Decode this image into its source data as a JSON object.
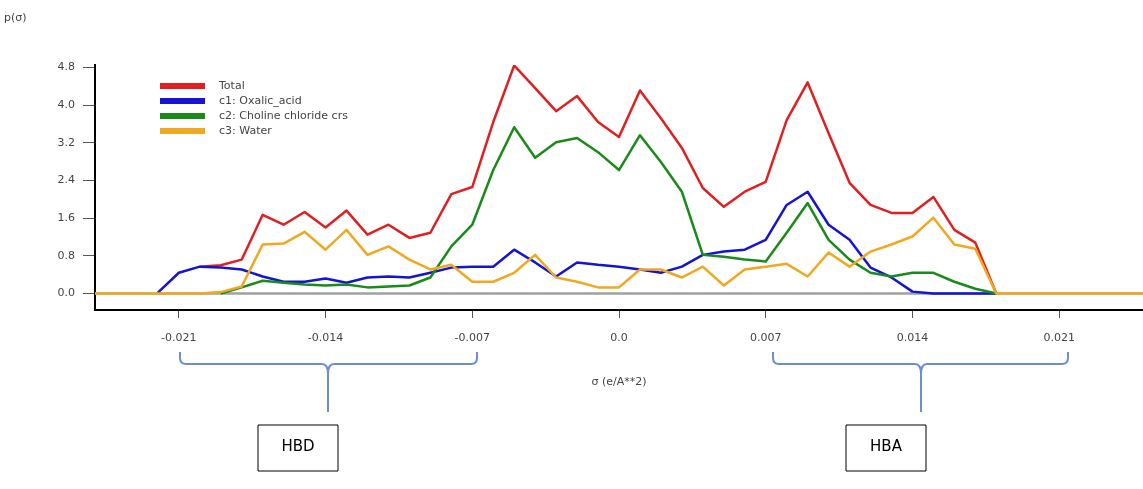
{
  "chart_data": {
    "type": "line",
    "xlabel": "σ (e/A**2)",
    "ylabel": "p(σ)",
    "x": [
      -0.025,
      -0.024,
      -0.023,
      -0.022,
      -0.021,
      -0.02,
      -0.019,
      -0.018,
      -0.017,
      -0.016,
      -0.015,
      -0.014,
      -0.013,
      -0.012,
      -0.011,
      -0.01,
      -0.009,
      -0.008,
      -0.007,
      -0.006,
      -0.005,
      -0.004,
      -0.003,
      -0.002,
      -0.001,
      0,
      0.001,
      0.002,
      0.003,
      0.004,
      0.005,
      0.006,
      0.007,
      0.008,
      0.009,
      0.01,
      0.011,
      0.012,
      0.013,
      0.014,
      0.015,
      0.016,
      0.017,
      0.018,
      0.019,
      0.02,
      0.021,
      0.022,
      0.023,
      0.024,
      0.025
    ],
    "series": [
      {
        "name": "Total",
        "color": "#e02020",
        "values": [
          null,
          null,
          null,
          null,
          null,
          0.57,
          0.6,
          0.72,
          1.67,
          1.46,
          1.73,
          1.4,
          1.76,
          1.25,
          1.46,
          1.18,
          1.29,
          2.11,
          2.26,
          3.64,
          4.84,
          4.36,
          3.87,
          4.19,
          3.64,
          3.32,
          4.31,
          3.72,
          3.09,
          2.24,
          1.84,
          2.16,
          2.37,
          3.68,
          4.48,
          3.4,
          2.35,
          1.88,
          1.71,
          1.71,
          2.05,
          1.35,
          1.08,
          0,
          null,
          null,
          null,
          null,
          null,
          null,
          null
        ]
      },
      {
        "name": "c1: Oxalic_acid",
        "color": "#1414d2",
        "values": [
          null,
          null,
          null,
          0.02,
          0.44,
          0.57,
          0.55,
          0.51,
          0.36,
          0.25,
          0.25,
          0.32,
          0.23,
          0.34,
          0.36,
          0.34,
          0.44,
          0.55,
          0.57,
          0.57,
          0.93,
          0.66,
          0.36,
          0.66,
          0.61,
          0.57,
          0.51,
          0.44,
          0.57,
          0.82,
          0.89,
          0.93,
          1.14,
          1.88,
          2.16,
          1.46,
          1.14,
          0.55,
          0.34,
          0.04,
          0,
          0,
          0,
          0,
          null,
          null,
          null,
          null,
          null,
          null,
          null
        ]
      },
      {
        "name": "c2: Choline chloride crs",
        "color": "#1a8a1a",
        "values": [
          null,
          null,
          null,
          null,
          null,
          null,
          0,
          0.13,
          0.27,
          0.23,
          0.19,
          0.17,
          0.19,
          0.13,
          0.15,
          0.17,
          0.34,
          1.0,
          1.46,
          2.62,
          3.53,
          2.88,
          3.21,
          3.3,
          3.0,
          2.62,
          3.36,
          2.79,
          2.16,
          0.82,
          0.78,
          0.72,
          0.68,
          1.29,
          1.92,
          1.14,
          0.72,
          0.44,
          0.36,
          0.44,
          0.44,
          0.25,
          0.1,
          0,
          null,
          null,
          null,
          null,
          null,
          null,
          null
        ]
      },
      {
        "name": "c3: Water",
        "color": "#f0a820",
        "values": [
          0,
          0,
          0,
          0,
          0,
          0,
          0.03,
          0.15,
          1.04,
          1.06,
          1.31,
          0.93,
          1.35,
          0.82,
          1.0,
          0.72,
          0.51,
          0.61,
          0.25,
          0.25,
          0.44,
          0.82,
          0.34,
          0.25,
          0.13,
          0.13,
          0.51,
          0.51,
          0.34,
          0.57,
          0.17,
          0.51,
          0.57,
          0.63,
          0.36,
          0.87,
          0.57,
          0.89,
          1.04,
          1.21,
          1.61,
          1.04,
          0.95,
          0,
          0,
          0,
          0,
          0,
          0,
          0,
          0
        ]
      }
    ],
    "xlim": [
      -0.025,
      0.025
    ],
    "xticks": [
      -0.021,
      -0.014,
      -0.007,
      {
        "value": 0,
        "label": "0.0"
      },
      0.007,
      0.014,
      0.021
    ],
    "ylim": [
      -0.35,
      4.85
    ],
    "yticks": [
      {
        "value": 0,
        "label": "0.0"
      },
      0.8,
      1.6,
      2.4,
      3.2,
      {
        "value": 4,
        "label": "4.0"
      },
      4.8
    ],
    "ref_lines": [
      {
        "axis": "y",
        "value": 0,
        "color": "#a0a0a0"
      }
    ],
    "legend": "top left",
    "marker": "none",
    "line_style": "solid",
    "annotations": [
      "HBD",
      "HBA"
    ]
  }
}
